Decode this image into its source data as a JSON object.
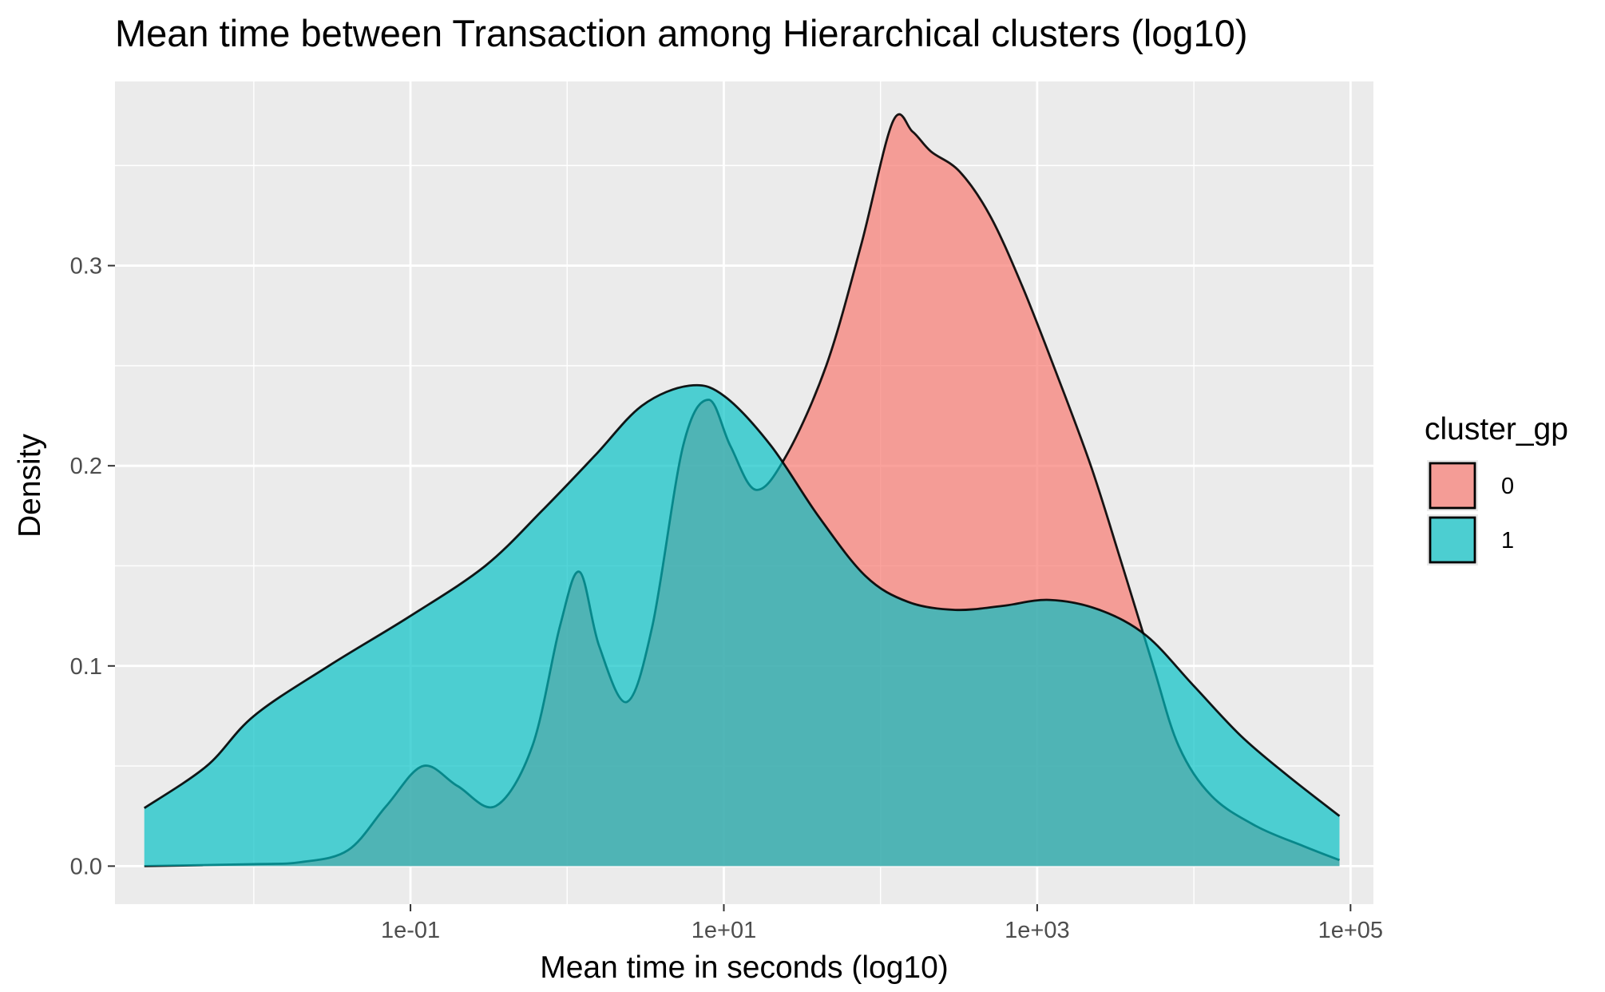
{
  "chart_data": {
    "type": "area",
    "title": "Mean time between Transaction among Hierarchical clusters (log10)",
    "xlabel": "Mean time in seconds (log10)",
    "ylabel": "Density",
    "x_scale": "log10",
    "xlim": [
      0.0013,
      140000
    ],
    "ylim": [
      -0.019,
      0.392
    ],
    "x_ticks": [
      {
        "value": 0.1,
        "label": "1e-01"
      },
      {
        "value": 10,
        "label": "1e+01"
      },
      {
        "value": 1000,
        "label": "1e+03"
      },
      {
        "value": 100000,
        "label": "1e+05"
      }
    ],
    "x_minor_ticks": [
      0.01,
      1,
      100,
      10000
    ],
    "y_ticks": [
      {
        "value": 0.0,
        "label": "0.0"
      },
      {
        "value": 0.1,
        "label": "0.1"
      },
      {
        "value": 0.2,
        "label": "0.2"
      },
      {
        "value": 0.3,
        "label": "0.3"
      }
    ],
    "y_minor_ticks": [
      0.05,
      0.15,
      0.25,
      0.35
    ],
    "grid": true,
    "legend": {
      "title": "cluster_gp",
      "position": "right"
    },
    "series": [
      {
        "name": "0",
        "color": "#F8766D",
        "points": [
          {
            "x": 0.002,
            "y": 0.0
          },
          {
            "x": 0.01,
            "y": 0.001
          },
          {
            "x": 0.02,
            "y": 0.002
          },
          {
            "x": 0.04,
            "y": 0.008
          },
          {
            "x": 0.07,
            "y": 0.03
          },
          {
            "x": 0.12,
            "y": 0.05
          },
          {
            "x": 0.2,
            "y": 0.04
          },
          {
            "x": 0.35,
            "y": 0.03
          },
          {
            "x": 0.6,
            "y": 0.06
          },
          {
            "x": 0.9,
            "y": 0.12
          },
          {
            "x": 1.2,
            "y": 0.147
          },
          {
            "x": 1.6,
            "y": 0.11
          },
          {
            "x": 2.4,
            "y": 0.082
          },
          {
            "x": 3.5,
            "y": 0.12
          },
          {
            "x": 5.5,
            "y": 0.21
          },
          {
            "x": 8,
            "y": 0.233
          },
          {
            "x": 11,
            "y": 0.21
          },
          {
            "x": 16,
            "y": 0.188
          },
          {
            "x": 25,
            "y": 0.205
          },
          {
            "x": 45,
            "y": 0.25
          },
          {
            "x": 75,
            "y": 0.31
          },
          {
            "x": 120,
            "y": 0.372
          },
          {
            "x": 160,
            "y": 0.367
          },
          {
            "x": 210,
            "y": 0.357
          },
          {
            "x": 320,
            "y": 0.347
          },
          {
            "x": 500,
            "y": 0.325
          },
          {
            "x": 800,
            "y": 0.29
          },
          {
            "x": 1300,
            "y": 0.248
          },
          {
            "x": 2200,
            "y": 0.2
          },
          {
            "x": 3500,
            "y": 0.15
          },
          {
            "x": 5500,
            "y": 0.1
          },
          {
            "x": 8000,
            "y": 0.06
          },
          {
            "x": 13000,
            "y": 0.035
          },
          {
            "x": 25000,
            "y": 0.02
          },
          {
            "x": 50000,
            "y": 0.01
          },
          {
            "x": 85000,
            "y": 0.003
          }
        ]
      },
      {
        "name": "1",
        "color": "#00BFC4",
        "points": [
          {
            "x": 0.002,
            "y": 0.029
          },
          {
            "x": 0.005,
            "y": 0.05
          },
          {
            "x": 0.01,
            "y": 0.075
          },
          {
            "x": 0.03,
            "y": 0.1
          },
          {
            "x": 0.1,
            "y": 0.125
          },
          {
            "x": 0.3,
            "y": 0.15
          },
          {
            "x": 0.7,
            "y": 0.178
          },
          {
            "x": 1.5,
            "y": 0.205
          },
          {
            "x": 3,
            "y": 0.23
          },
          {
            "x": 6,
            "y": 0.24
          },
          {
            "x": 10,
            "y": 0.235
          },
          {
            "x": 20,
            "y": 0.21
          },
          {
            "x": 40,
            "y": 0.175
          },
          {
            "x": 80,
            "y": 0.145
          },
          {
            "x": 150,
            "y": 0.132
          },
          {
            "x": 300,
            "y": 0.128
          },
          {
            "x": 600,
            "y": 0.13
          },
          {
            "x": 1200,
            "y": 0.133
          },
          {
            "x": 2500,
            "y": 0.128
          },
          {
            "x": 5000,
            "y": 0.115
          },
          {
            "x": 10000,
            "y": 0.09
          },
          {
            "x": 20000,
            "y": 0.065
          },
          {
            "x": 40000,
            "y": 0.045
          },
          {
            "x": 85000,
            "y": 0.025
          }
        ]
      }
    ]
  }
}
